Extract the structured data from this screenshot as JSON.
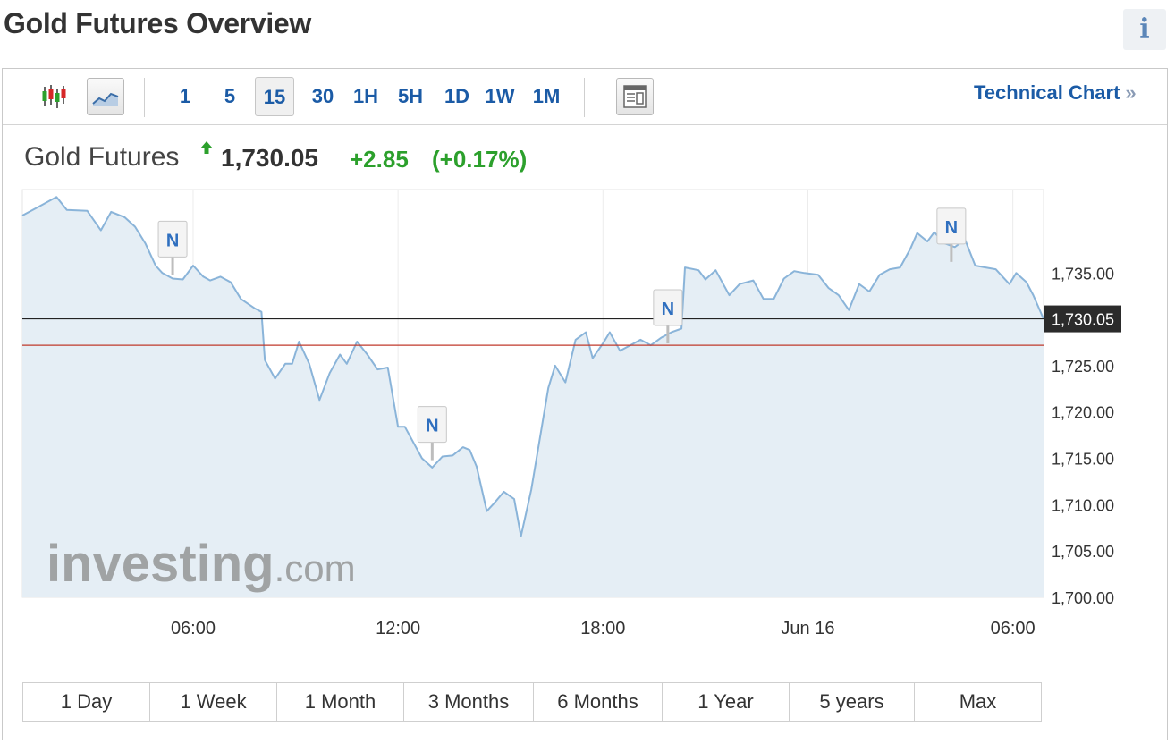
{
  "page": {
    "title": "Gold Futures Overview"
  },
  "info_icon": {
    "glyph": "i",
    "icon": "info-icon"
  },
  "toolbar": {
    "intervals": [
      "1",
      "5",
      "15",
      "30",
      "1H",
      "5H",
      "1D",
      "1W",
      "1M"
    ],
    "active_interval": "15",
    "technical_chart_label": "Technical Chart",
    "technical_chart_chevron": "»",
    "icons": [
      "candlestick-icon",
      "line-chart-icon",
      "layout-icon"
    ]
  },
  "quote": {
    "name": "Gold Futures",
    "price": "1,730.05",
    "change": "+2.85",
    "change_pct": "(+0.17%)",
    "direction": "up",
    "up_color": "#2ca02c"
  },
  "watermark": {
    "brand": "investing",
    "suffix": ".com"
  },
  "ranges": [
    "1 Day",
    "1 Week",
    "1 Month",
    "3 Months",
    "6 Months",
    "1 Year",
    "5 years",
    "Max"
  ],
  "chart_data": {
    "type": "area",
    "x_ticks": [
      "06:00",
      "12:00",
      "18:00",
      "Jun 16",
      "06:00"
    ],
    "x_tick_hours": [
      6,
      12,
      18,
      24,
      30
    ],
    "y_ticks": [
      "1,735.00",
      "1,725.00",
      "1,720.00",
      "1,715.00",
      "1,710.00",
      "1,705.00",
      "1,700.00"
    ],
    "y_tick_values": [
      1735,
      1725,
      1720,
      1715,
      1710,
      1705,
      1700
    ],
    "ylim": [
      1700,
      1744
    ],
    "x_range_hours": [
      1.0,
      30.9
    ],
    "current_value_label": "1,730.05",
    "current_value": 1730.05,
    "previous_close": 1727.2,
    "line_color": "#8ab4d9",
    "fill_color": "#e5eef5",
    "current_line_color": "#222222",
    "previous_close_color": "#c0392b",
    "news_marker_label": "N",
    "news_markers": [
      {
        "x": 5.4,
        "y": 1734.8
      },
      {
        "x": 13.0,
        "y": 1714.8
      },
      {
        "x": 19.9,
        "y": 1727.4
      },
      {
        "x": 28.2,
        "y": 1736.2
      }
    ],
    "series": [
      {
        "values": [
          [
            1.0,
            1741.2
          ],
          [
            1.5,
            1742.2
          ],
          [
            2.0,
            1743.2
          ],
          [
            2.3,
            1741.8
          ],
          [
            2.9,
            1741.7
          ],
          [
            3.3,
            1739.6
          ],
          [
            3.6,
            1741.6
          ],
          [
            4.0,
            1741.0
          ],
          [
            4.3,
            1740.0
          ],
          [
            4.6,
            1738.2
          ],
          [
            4.9,
            1735.8
          ],
          [
            5.1,
            1735.0
          ],
          [
            5.4,
            1734.4
          ],
          [
            5.7,
            1734.3
          ],
          [
            6.0,
            1735.8
          ],
          [
            6.3,
            1734.6
          ],
          [
            6.5,
            1734.2
          ],
          [
            6.8,
            1734.6
          ],
          [
            7.1,
            1734.0
          ],
          [
            7.4,
            1732.2
          ],
          [
            7.8,
            1731.2
          ],
          [
            8.0,
            1730.8
          ],
          [
            8.1,
            1725.6
          ],
          [
            8.4,
            1723.6
          ],
          [
            8.7,
            1725.2
          ],
          [
            8.9,
            1725.2
          ],
          [
            9.1,
            1727.6
          ],
          [
            9.4,
            1725.2
          ],
          [
            9.7,
            1721.3
          ],
          [
            10.0,
            1724.2
          ],
          [
            10.3,
            1726.2
          ],
          [
            10.5,
            1725.2
          ],
          [
            10.8,
            1727.6
          ],
          [
            11.1,
            1726.2
          ],
          [
            11.4,
            1724.6
          ],
          [
            11.7,
            1724.8
          ],
          [
            12.0,
            1718.4
          ],
          [
            12.2,
            1718.4
          ],
          [
            12.7,
            1715.0
          ],
          [
            13.0,
            1714.0
          ],
          [
            13.3,
            1715.2
          ],
          [
            13.6,
            1715.3
          ],
          [
            13.9,
            1716.2
          ],
          [
            14.1,
            1715.9
          ],
          [
            14.3,
            1714.1
          ],
          [
            14.6,
            1709.3
          ],
          [
            14.8,
            1710.1
          ],
          [
            15.1,
            1711.4
          ],
          [
            15.4,
            1710.6
          ],
          [
            15.6,
            1706.6
          ],
          [
            15.9,
            1711.6
          ],
          [
            16.4,
            1722.6
          ],
          [
            16.6,
            1725.0
          ],
          [
            16.9,
            1723.2
          ],
          [
            17.2,
            1727.8
          ],
          [
            17.5,
            1728.6
          ],
          [
            17.7,
            1725.8
          ],
          [
            18.0,
            1727.4
          ],
          [
            18.2,
            1728.6
          ],
          [
            18.5,
            1726.6
          ],
          [
            18.8,
            1727.2
          ],
          [
            19.1,
            1727.8
          ],
          [
            19.4,
            1727.2
          ],
          [
            19.7,
            1728.0
          ],
          [
            20.0,
            1728.6
          ],
          [
            20.3,
            1729.0
          ],
          [
            20.4,
            1735.6
          ],
          [
            20.8,
            1735.3
          ],
          [
            21.0,
            1734.3
          ],
          [
            21.3,
            1735.3
          ],
          [
            21.7,
            1732.6
          ],
          [
            22.0,
            1733.8
          ],
          [
            22.4,
            1734.2
          ],
          [
            22.7,
            1732.2
          ],
          [
            23.0,
            1732.2
          ],
          [
            23.3,
            1734.4
          ],
          [
            23.6,
            1735.2
          ],
          [
            23.9,
            1735.0
          ],
          [
            24.3,
            1734.8
          ],
          [
            24.6,
            1733.4
          ],
          [
            24.9,
            1732.6
          ],
          [
            25.2,
            1731.0
          ],
          [
            25.5,
            1733.8
          ],
          [
            25.8,
            1733.0
          ],
          [
            26.1,
            1734.8
          ],
          [
            26.4,
            1735.4
          ],
          [
            26.7,
            1735.6
          ],
          [
            27.0,
            1737.6
          ],
          [
            27.2,
            1739.3
          ],
          [
            27.5,
            1738.4
          ],
          [
            27.7,
            1739.4
          ],
          [
            28.0,
            1738.2
          ],
          [
            28.3,
            1737.8
          ],
          [
            28.6,
            1738.6
          ],
          [
            28.9,
            1735.8
          ],
          [
            29.2,
            1735.6
          ],
          [
            29.5,
            1735.4
          ],
          [
            29.9,
            1733.8
          ],
          [
            30.1,
            1735.0
          ],
          [
            30.4,
            1734.0
          ],
          [
            30.6,
            1732.6
          ],
          [
            30.9,
            1730.05
          ]
        ]
      }
    ]
  }
}
